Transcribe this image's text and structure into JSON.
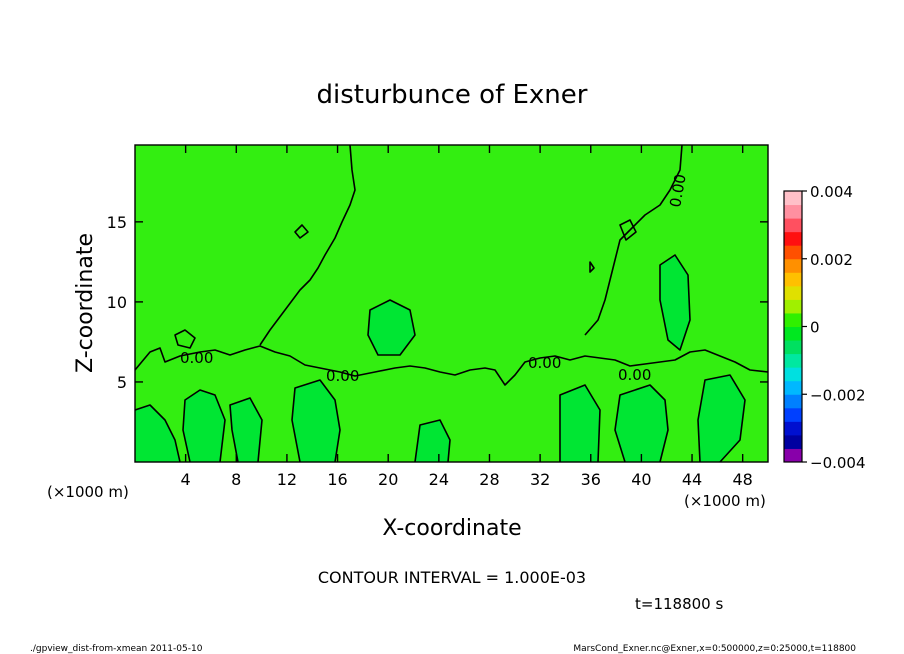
{
  "chart_data": {
    "type": "contour",
    "title": "disturbunce of Exner",
    "xlabel": "X-coordinate",
    "ylabel": "Z-coordinate",
    "x_unit": "(×1000 m)",
    "y_unit": "(×1000 m)",
    "xlim": [
      0,
      50
    ],
    "ylim": [
      0,
      19.8
    ],
    "x_ticks": [
      4,
      8,
      12,
      16,
      20,
      24,
      28,
      32,
      36,
      40,
      44,
      48
    ],
    "y_ticks": [
      5,
      10,
      15
    ],
    "contour_label": "0.00",
    "contour_interval_text": "CONTOUR INTERVAL = 1.000E-03",
    "time_text": "t=118800 s",
    "colorbar": {
      "min": -0.004,
      "max": 0.004,
      "tick_values": [
        0.004,
        0.002,
        0,
        -0.002,
        -0.004
      ],
      "tick_labels": [
        "0.004",
        "0.002",
        "0",
        "−0.002",
        "−0.004"
      ],
      "colors": [
        "#8800aa",
        "#0000a0",
        "#0010d0",
        "#0040ff",
        "#0080ff",
        "#00b8ff",
        "#00e0e0",
        "#00e8a0",
        "#00e060",
        "#00e820",
        "#30f000",
        "#a0f000",
        "#e0e000",
        "#ffc000",
        "#ff9000",
        "#ff5000",
        "#ff1010",
        "#ff5060",
        "#ff90a0",
        "#ffc0c8"
      ]
    },
    "field_color_main": "#33ee11",
    "field_color_low": "#00e633"
  },
  "footer": {
    "left": "./gpview_dist-from-xmean  2011-05-10",
    "right": "MarsCond_Exner.nc@Exner,x=0:500000,z=0:25000,t=118800"
  }
}
